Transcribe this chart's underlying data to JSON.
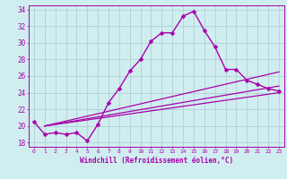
{
  "xlabel": "Windchill (Refroidissement éolien,°C)",
  "bg_color": "#d0eef0",
  "line_color": "#aa00aa",
  "grid_color": "#b0d0d8",
  "xlim": [
    -0.5,
    23.5
  ],
  "ylim": [
    17.5,
    34.5
  ],
  "xticks": [
    0,
    1,
    2,
    3,
    4,
    5,
    6,
    7,
    8,
    9,
    10,
    11,
    12,
    13,
    14,
    15,
    16,
    17,
    18,
    19,
    20,
    21,
    22,
    23
  ],
  "yticks": [
    18,
    20,
    22,
    24,
    26,
    28,
    30,
    32,
    34
  ],
  "main_curve": {
    "x": [
      0,
      1,
      2,
      3,
      4,
      5,
      6,
      7,
      8,
      9,
      10,
      11,
      12,
      13,
      14,
      15,
      16,
      17,
      18,
      19,
      20,
      21,
      22,
      23
    ],
    "y": [
      20.5,
      19.0,
      19.2,
      19.0,
      19.2,
      18.2,
      20.2,
      22.8,
      24.5,
      26.6,
      28.0,
      30.2,
      31.2,
      31.2,
      33.2,
      33.8,
      31.5,
      29.5,
      26.8,
      26.8,
      25.5,
      25.0,
      24.5,
      24.2
    ]
  },
  "straight_lines": [
    {
      "x": [
        1,
        23
      ],
      "y": [
        20.0,
        26.5
      ]
    },
    {
      "x": [
        1,
        23
      ],
      "y": [
        20.0,
        24.8
      ]
    },
    {
      "x": [
        1,
        23
      ],
      "y": [
        20.0,
        24.0
      ]
    }
  ]
}
